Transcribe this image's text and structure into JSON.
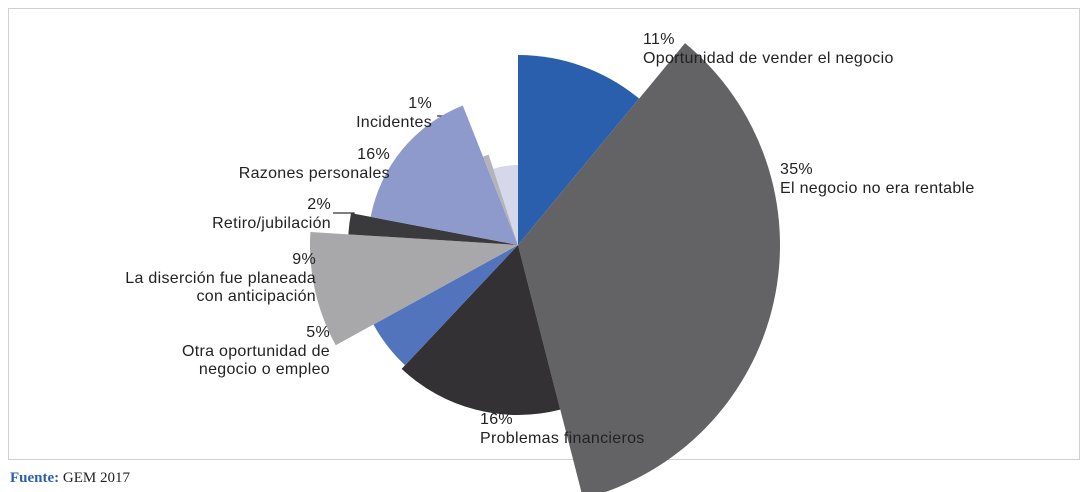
{
  "chart_data": {
    "type": "pie",
    "categories": [
      "Oportunidad de vender el negocio",
      "El negocio no era rentable",
      "Problemas financieros",
      "Otra oportunidad de\nnegocio o empleo",
      "La diserción fue planeada\ncon anticipación",
      "Retiro/jubilación",
      "Razones personales",
      "Incidentes",
      null
    ],
    "values": [
      11,
      35,
      16,
      5,
      9,
      2,
      16,
      1,
      5
    ],
    "value_labels": [
      "11%",
      "35%",
      "16%",
      "5%",
      "9%",
      "2%",
      "16%",
      "1%",
      null
    ],
    "colors": [
      "#2a5fad",
      "#636366",
      "#333134",
      "#5274bd",
      "#a8a8aa",
      "#3a3a3d",
      "#8d9acb",
      "#b3b3b8",
      "#d5d7ea"
    ],
    "source_label": "Fuente:",
    "source": "GEM 2017"
  }
}
